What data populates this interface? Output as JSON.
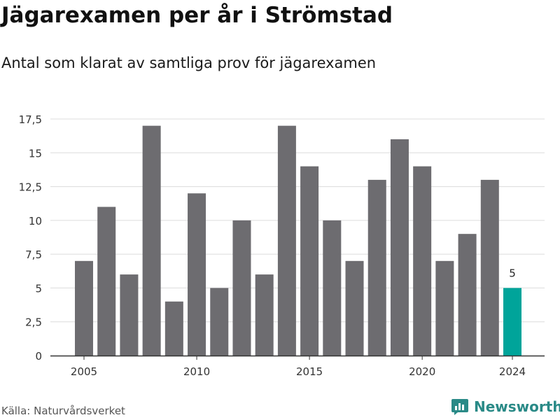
{
  "title": "Jägarexamen per år i Strömstad",
  "subtitle": "Antal som klarat av samtliga prov för jägarexamen",
  "source": "Källa: Naturvårdsverket",
  "brand": "Newsworthy",
  "colors": {
    "bar": "#6d6c70",
    "highlight": "#00a49a",
    "grid": "#dcdcdc",
    "axis": "#333333",
    "brand": "#2a8a87"
  },
  "chart_data": {
    "type": "bar",
    "x": [
      2005,
      2006,
      2007,
      2008,
      2009,
      2010,
      2011,
      2012,
      2013,
      2014,
      2015,
      2016,
      2017,
      2018,
      2019,
      2020,
      2021,
      2022,
      2023,
      2024
    ],
    "values": [
      7,
      11,
      6,
      17,
      4,
      12,
      5,
      10,
      6,
      17,
      14,
      10,
      7,
      13,
      16,
      14,
      7,
      9,
      13,
      5
    ],
    "highlight_x": 2024,
    "highlight_label": "5",
    "ylim": [
      0,
      17.5
    ],
    "yticks": [
      0,
      2.5,
      5,
      7.5,
      10,
      12.5,
      15,
      17.5
    ],
    "ytick_labels": [
      "0",
      "2,5",
      "5",
      "7,5",
      "10",
      "12,5",
      "15",
      "17,5"
    ],
    "xticks": [
      2005,
      2010,
      2015,
      2020,
      2024
    ],
    "xtick_labels": [
      "2005",
      "2010",
      "2015",
      "2020",
      "2024"
    ],
    "grid": true
  }
}
